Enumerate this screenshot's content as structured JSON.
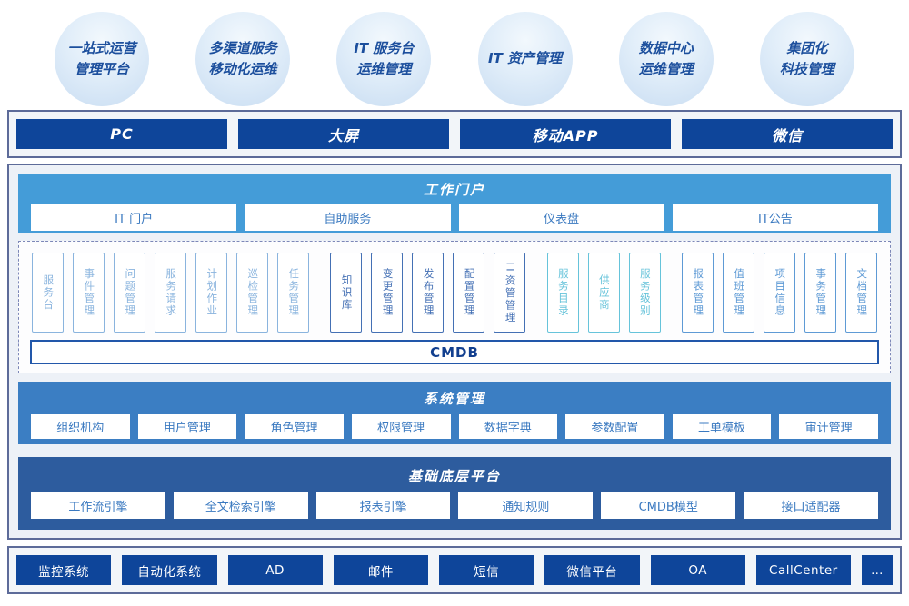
{
  "colors": {
    "navy_box": "#0e459a",
    "panel_border": "#5d6b99",
    "portal_band": "#449cd8",
    "system_band": "#3b7ec3",
    "base_band": "#2d5c9e",
    "bubble_text": "#1c4f9d",
    "white_box_text": "#3a79c0",
    "cmdb_border": "#2257aa"
  },
  "bubbles": [
    {
      "label": "一站式运营\n管理平台"
    },
    {
      "label": "多渠道服务\n移动化运维"
    },
    {
      "label": "IT 服务台\n运维管理"
    },
    {
      "label": "IT 资产管理"
    },
    {
      "label": "数据中心\n运维管理"
    },
    {
      "label": "集团化\n科技管理"
    }
  ],
  "channels": [
    "PC",
    "大屏",
    "移动APP",
    "微信"
  ],
  "portal": {
    "title": "工作门户",
    "items": [
      "IT 门户",
      "自助服务",
      "仪表盘",
      "IT公告"
    ]
  },
  "modules": {
    "cmdb_label": "CMDB",
    "groups": [
      {
        "color": "#8ab4de",
        "items": [
          "服务台",
          "事件管理",
          "问题管理",
          "服务请求",
          "计划作业",
          "巡检管理",
          "任务管理"
        ]
      },
      {
        "color": "#4470b4",
        "items": [
          "知识库",
          "变更管理",
          "发布管理",
          "配置管理",
          "IT资管管理"
        ]
      },
      {
        "color": "#66c3da",
        "items": [
          "服务目录",
          "供应商",
          "服务级别"
        ]
      },
      {
        "color": "#5e9ad5",
        "items": [
          "报表管理",
          "值班管理",
          "项目信息",
          "事务管理",
          "文档管理"
        ]
      }
    ]
  },
  "system": {
    "title": "系统管理",
    "items": [
      "组织机构",
      "用户管理",
      "角色管理",
      "权限管理",
      "数据字典",
      "参数配置",
      "工单模板",
      "审计管理"
    ]
  },
  "base": {
    "title": "基础底层平台",
    "items": [
      "工作流引擎",
      "全文检索引擎",
      "报表引擎",
      "通知规则",
      "CMDB模型",
      "接口适配器"
    ]
  },
  "integrations": [
    "监控系统",
    "自动化系统",
    "AD",
    "邮件",
    "短信",
    "微信平台",
    "OA",
    "CallCenter",
    "…"
  ]
}
